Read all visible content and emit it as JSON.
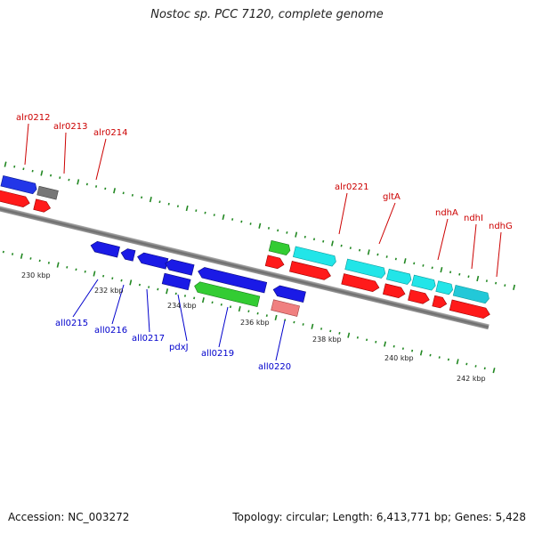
{
  "title": "Nostoc sp. PCC 7120, complete genome",
  "footer": {
    "accession": "Accession: NC_003272",
    "summary": "Topology: circular; Length: 6,413,771 bp; Genes: 5,428"
  },
  "colors": {
    "forward_gene": "#2236e8",
    "forward_cds": "#ff1a1a",
    "reverse_gene": "#1a1ae6",
    "green_gene": "#33cc33",
    "cyan_gene": "#22e5e8",
    "gray_gene": "#777777",
    "pink_gene": "#f08080",
    "label_forward": "#cc0000",
    "label_reverse": "#0000cc",
    "tick": "#228822",
    "backbone": "#888888"
  },
  "scale_labels": [
    "230 kbp",
    "232 kbp",
    "234 kbp",
    "236 kbp",
    "238 kbp",
    "240 kbp",
    "242 kbp"
  ],
  "forward_labels": [
    "alr0212",
    "alr0213",
    "alr0214",
    "alr0221",
    "gltA",
    "ndhA",
    "ndhI",
    "ndhG"
  ],
  "reverse_labels": [
    "all0215",
    "all0216",
    "all0217",
    "pdxJ",
    "all0219",
    "all0220"
  ]
}
